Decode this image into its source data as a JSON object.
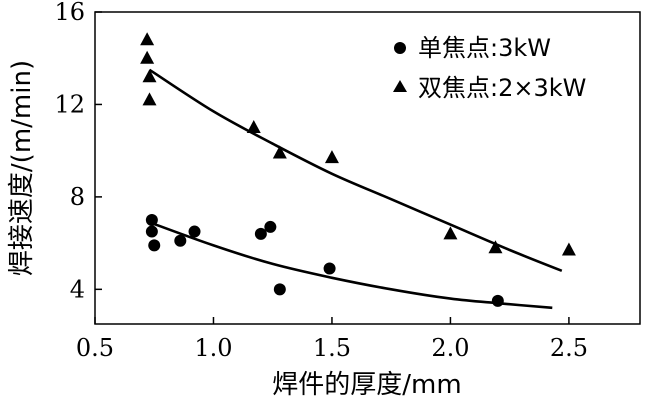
{
  "chart_data": {
    "type": "scatter",
    "xlabel": "焊件的厚度/mm",
    "ylabel": "焊接速度/(m/min)",
    "xlim": [
      0.5,
      2.8
    ],
    "ylim": [
      2.5,
      16
    ],
    "x_ticks": [
      0.5,
      1.0,
      1.5,
      2.0,
      2.5
    ],
    "x_tick_labels": [
      "0.5",
      "1.0",
      "1.5",
      "2.0",
      "2.5"
    ],
    "y_ticks": [
      4,
      8,
      12,
      16
    ],
    "y_tick_labels": [
      "4",
      "8",
      "12",
      "16"
    ],
    "legend_position": "top-right",
    "series": [
      {
        "name": "单焦点:3kW",
        "marker": "circle",
        "points": [
          {
            "x": 0.74,
            "y": 7.0
          },
          {
            "x": 0.74,
            "y": 6.5
          },
          {
            "x": 0.75,
            "y": 5.9
          },
          {
            "x": 0.86,
            "y": 6.1
          },
          {
            "x": 0.92,
            "y": 6.5
          },
          {
            "x": 1.2,
            "y": 6.4
          },
          {
            "x": 1.24,
            "y": 6.7
          },
          {
            "x": 1.28,
            "y": 4.0
          },
          {
            "x": 1.49,
            "y": 4.9
          },
          {
            "x": 2.2,
            "y": 3.5
          }
        ],
        "fit": [
          {
            "x": 0.73,
            "y": 6.9
          },
          {
            "x": 1.0,
            "y": 5.9
          },
          {
            "x": 1.25,
            "y": 5.1
          },
          {
            "x": 1.5,
            "y": 4.5
          },
          {
            "x": 1.75,
            "y": 4.0
          },
          {
            "x": 2.0,
            "y": 3.6
          },
          {
            "x": 2.2,
            "y": 3.4
          },
          {
            "x": 2.43,
            "y": 3.2
          }
        ]
      },
      {
        "name": "双焦点:2×3kW",
        "marker": "triangle",
        "points": [
          {
            "x": 0.72,
            "y": 14.8
          },
          {
            "x": 0.72,
            "y": 14.0
          },
          {
            "x": 0.73,
            "y": 13.2
          },
          {
            "x": 0.73,
            "y": 12.2
          },
          {
            "x": 1.17,
            "y": 11.0
          },
          {
            "x": 1.28,
            "y": 9.9
          },
          {
            "x": 1.5,
            "y": 9.7
          },
          {
            "x": 2.0,
            "y": 6.4
          },
          {
            "x": 2.19,
            "y": 5.8
          },
          {
            "x": 2.5,
            "y": 5.7
          }
        ],
        "fit": [
          {
            "x": 0.73,
            "y": 13.5
          },
          {
            "x": 1.0,
            "y": 11.7
          },
          {
            "x": 1.25,
            "y": 10.3
          },
          {
            "x": 1.5,
            "y": 9.0
          },
          {
            "x": 1.75,
            "y": 7.9
          },
          {
            "x": 2.0,
            "y": 6.8
          },
          {
            "x": 2.25,
            "y": 5.7
          },
          {
            "x": 2.47,
            "y": 4.8
          }
        ]
      }
    ]
  }
}
